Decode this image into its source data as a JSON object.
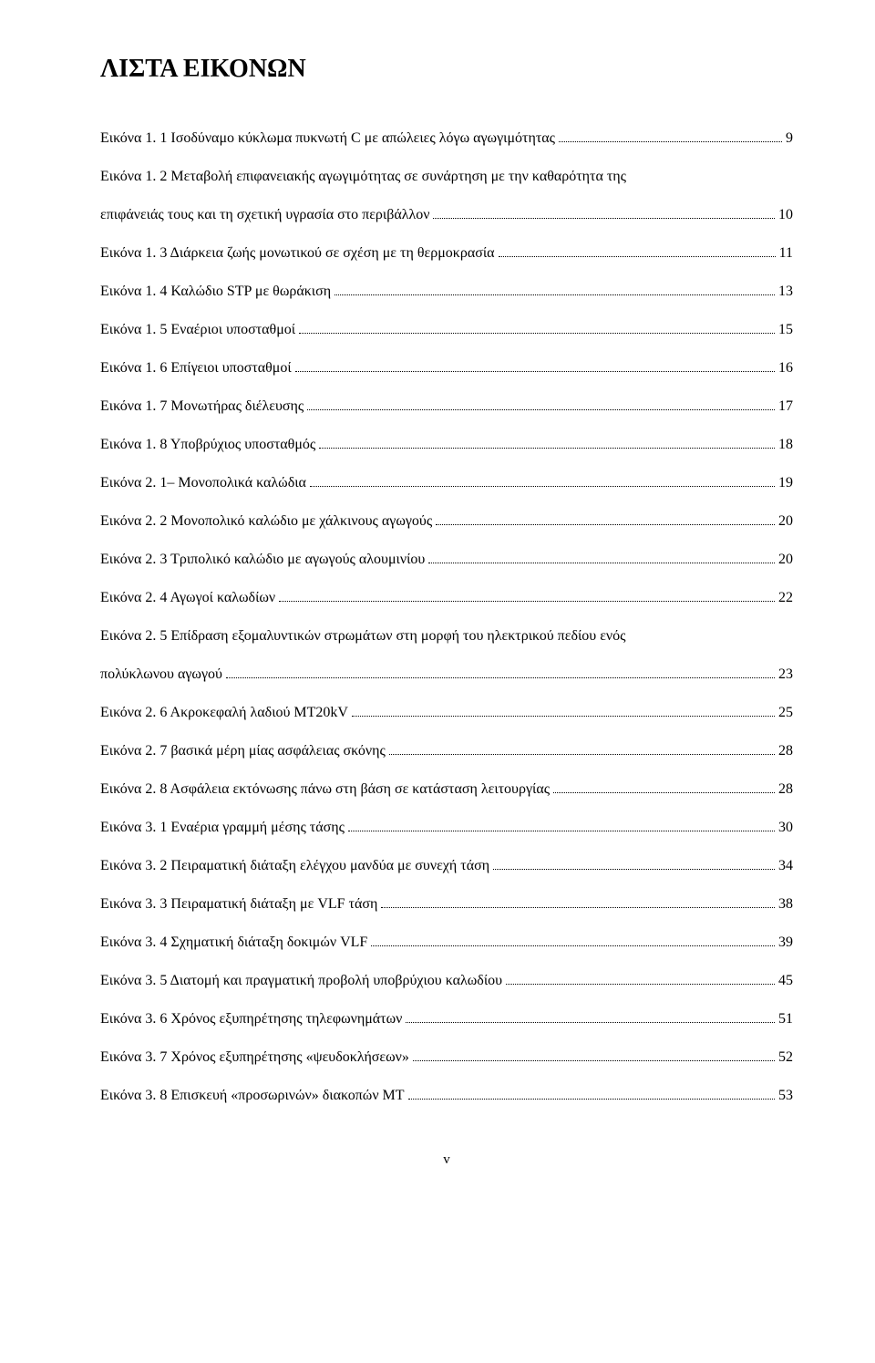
{
  "title": "ΛΙΣΤΑ ΕΙΚΟΝΩΝ",
  "entries": [
    {
      "text": "Εικόνα 1. 1 Ισοδύναμο κύκλωμα πυκνωτή C με απώλειες λόγω αγωγιμότητας",
      "page": "9"
    },
    {
      "line1": "Εικόνα 1. 2 Μεταβολή επιφανειακής αγωγιμότητας σε συνάρτηση με την καθαρότητα της",
      "text": "επιφάνειάς τους και τη σχετική υγρασία στο περιβάλλον",
      "page": "10",
      "multiline": true
    },
    {
      "text": "Εικόνα 1. 3 Διάρκεια ζωής μονωτικού σε σχέση με τη θερμοκρασία",
      "page": "11"
    },
    {
      "text": "Εικόνα 1. 4 Καλώδιο STP με θωράκιση",
      "page": "13"
    },
    {
      "text": "Εικόνα 1. 5 Εναέριοι υποσταθμοί",
      "page": "15"
    },
    {
      "text": "Εικόνα 1. 6 Επίγειοι υποσταθμοί",
      "page": "16"
    },
    {
      "text": "Εικόνα 1. 7 Μονωτήρας διέλευσης",
      "page": "17"
    },
    {
      "text": "Εικόνα 1. 8 Υποβρύχιος υποσταθμός",
      "page": "18"
    },
    {
      "text": "Εικόνα 2. 1– Μονοπολικά καλώδια",
      "page": "19"
    },
    {
      "text": "Εικόνα 2. 2 Μονοπολικό καλώδιο με χάλκινους αγωγούς",
      "page": "20"
    },
    {
      "text": "Εικόνα 2. 3 Τριπολικό καλώδιο με αγωγούς αλουμινίου",
      "page": "20"
    },
    {
      "text": "Εικόνα 2. 4 Αγωγοί καλωδίων",
      "page": "22"
    },
    {
      "line1": "Εικόνα 2. 5 Επίδραση εξομαλυντικών στρωμάτων στη μορφή του ηλεκτρικού πεδίου ενός",
      "text": "πολύκλωνου αγωγού",
      "page": "23",
      "multiline": true
    },
    {
      "text": "Εικόνα 2. 6 Ακροκεφαλή λαδιού MT20kV",
      "page": "25"
    },
    {
      "text": "Εικόνα 2. 7 βασικά μέρη μίας ασφάλειας σκόνης",
      "page": "28"
    },
    {
      "text": "Εικόνα 2. 8 Ασφάλεια εκτόνωσης πάνω στη βάση σε κατάσταση λειτουργίας",
      "page": "28"
    },
    {
      "text": "Εικόνα 3. 1 Εναέρια γραμμή μέσης τάσης",
      "page": "30"
    },
    {
      "text": "Εικόνα 3. 2 Πειραματική διάταξη ελέγχου μανδύα με συνεχή τάση",
      "page": "34"
    },
    {
      "text": "Εικόνα 3. 3 Πειραματική διάταξη με VLF τάση",
      "page": "38"
    },
    {
      "text": "Εικόνα 3. 4 Σχηματική διάταξη δοκιμών VLF",
      "page": "39"
    },
    {
      "text": "Εικόνα 3. 5 Διατομή και πραγματική προβολή υποβρύχιου καλωδίου",
      "page": "45"
    },
    {
      "text": "Εικόνα 3. 6 Χρόνος εξυπηρέτησης τηλεφωνημάτων",
      "page": "51"
    },
    {
      "text": "Εικόνα 3. 7 Χρόνος εξυπηρέτησης «ψευδοκλήσεων»",
      "page": "52"
    },
    {
      "text": "Εικόνα 3. 8 Επισκευή «προσωρινών» διακοπών ΜΤ",
      "page": "53"
    }
  ],
  "footer": "v"
}
